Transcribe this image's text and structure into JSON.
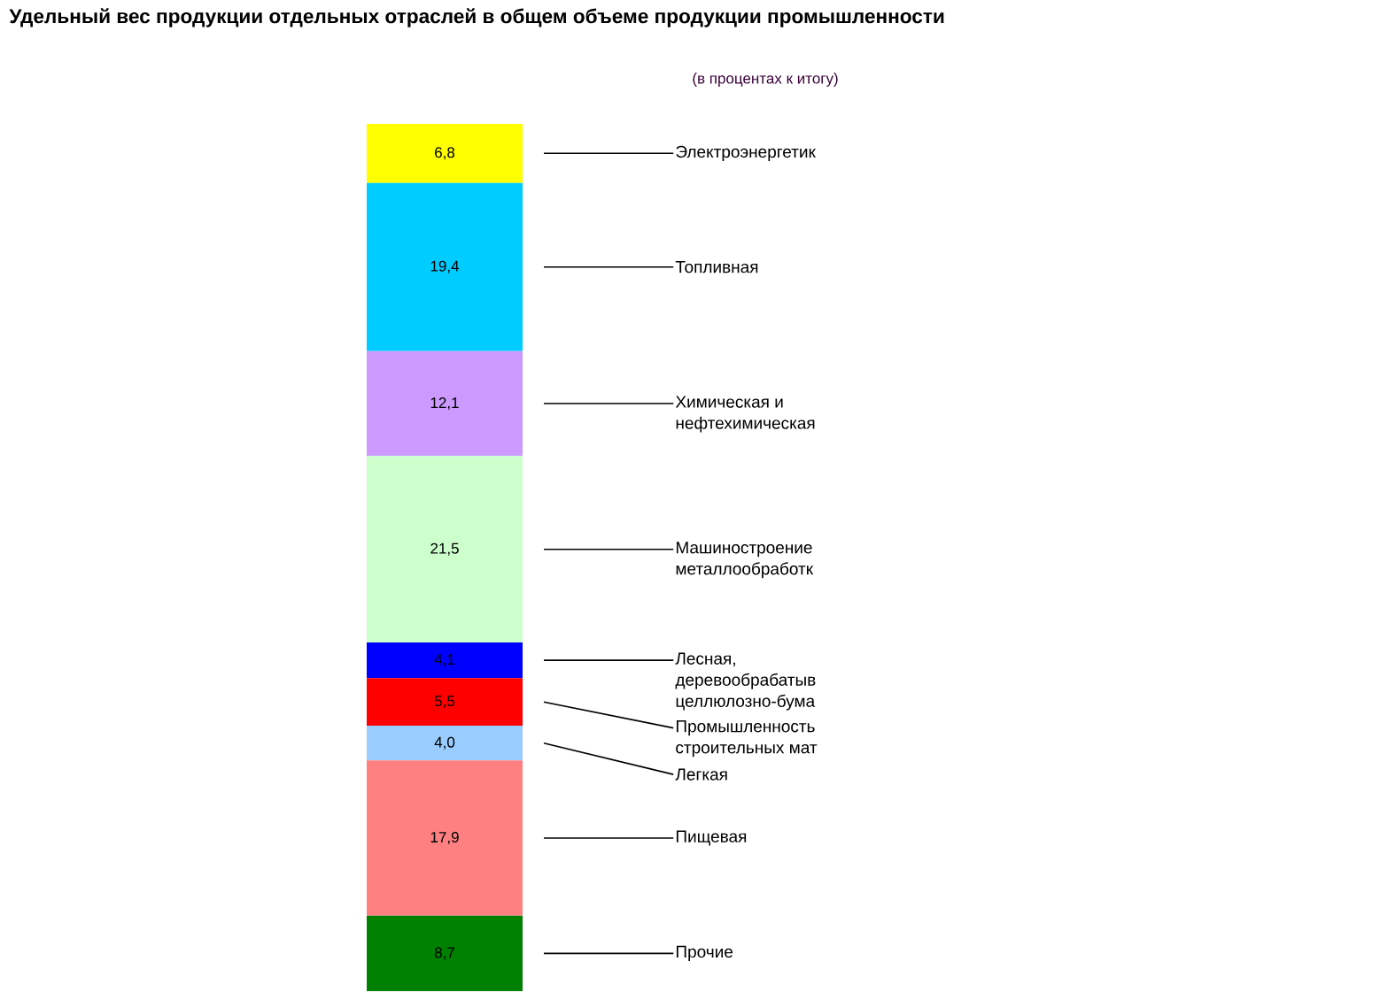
{
  "chart_data": {
    "type": "bar",
    "stacked": true,
    "title": "Удельный вес продукции отдельных отраслей в общем объеме продукции промышленности",
    "subtitle": "(в процентах к итогу)",
    "categories": [
      null
    ],
    "series": [
      {
        "name": "Прочие",
        "color": "#008000",
        "values": [
          8.7
        ],
        "value_labels": [
          "8,7"
        ]
      },
      {
        "name": "Пищевая",
        "color": "#ff8080",
        "values": [
          17.9
        ],
        "value_labels": [
          "17,9"
        ]
      },
      {
        "name": "Легкая",
        "color": "#99ccff",
        "values": [
          4.0
        ],
        "value_labels": [
          "4,0"
        ]
      },
      {
        "name": "Промышленность строительных мат",
        "color": "#ff0000",
        "values": [
          5.5
        ],
        "value_labels": [
          "5,5"
        ]
      },
      {
        "name": "Лесная, деревообрабатыв целлюлозно-бума",
        "color": "#0000ff",
        "values": [
          4.1
        ],
        "value_labels": [
          "4,1"
        ]
      },
      {
        "name": "Машиностроение металлообработк",
        "color": "#ccffcc",
        "values": [
          21.5
        ],
        "value_labels": [
          "21,5"
        ]
      },
      {
        "name": "Химическая и нефтехимическая",
        "color": "#cc99ff",
        "values": [
          12.1
        ],
        "value_labels": [
          "12,1"
        ]
      },
      {
        "name": "Топливная",
        "color": "#00ccff",
        "values": [
          19.4
        ],
        "value_labels": [
          "19,4"
        ]
      },
      {
        "name": "Электроэнергетик",
        "color": "#ffff00",
        "values": [
          6.8
        ],
        "value_labels": [
          "6,8"
        ]
      }
    ]
  }
}
